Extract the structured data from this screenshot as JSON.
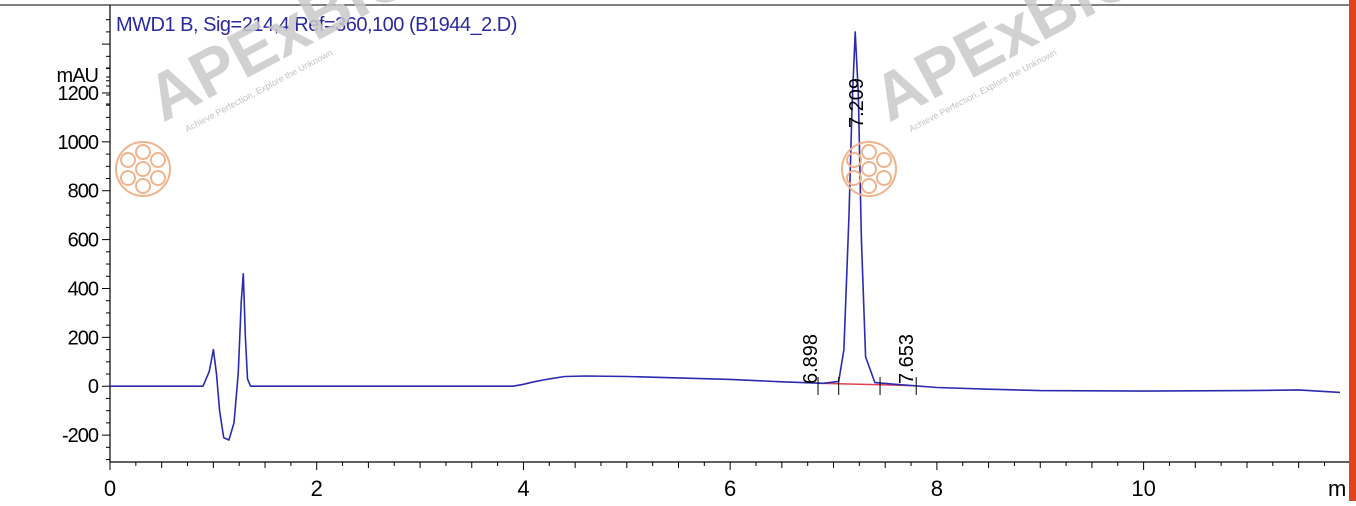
{
  "watermark": {
    "brand": "APExBIO",
    "tagline": "Achieve Perfection, Explore the Unknown",
    "color": "#c8c8c8",
    "logo_color": "#f0b48c"
  },
  "colors": {
    "trace": "#2b2bb0",
    "baseline_segment": "#e04050",
    "right_border": "#e0441a",
    "axis": "#000000"
  },
  "chart_data": {
    "type": "line",
    "title": "MWD1 B, Sig=214,4 Ref=360,100 (B1944_2.D)",
    "ylabel": "mAU",
    "xlabel_partial": "m",
    "xlim": [
      0,
      11.9
    ],
    "ylim": [
      -310,
      1560
    ],
    "xticks": [
      0,
      2,
      4,
      6,
      8,
      10
    ],
    "yticks": [
      -200,
      0,
      200,
      400,
      600,
      800,
      1000,
      1200
    ],
    "peaks": [
      {
        "label": "6.898",
        "x": 6.898
      },
      {
        "label": "7.209",
        "x": 7.209
      },
      {
        "label": "7.653",
        "x": 7.653
      }
    ],
    "series": [
      {
        "x": [
          0,
          0.9,
          0.96,
          1.0,
          1.03,
          1.06,
          1.1,
          1.15,
          1.2,
          1.24,
          1.27,
          1.29,
          1.31,
          1.33,
          1.36,
          1.45,
          1.6,
          2.0,
          3.0,
          3.9,
          4.0,
          4.1,
          4.25,
          4.4,
          4.6,
          5.0,
          6.0,
          6.5,
          6.9,
          7.05,
          7.1,
          7.15,
          7.18,
          7.21,
          7.24,
          7.27,
          7.31,
          7.4,
          7.6,
          8.0,
          8.5,
          9.0,
          10.0,
          11.0,
          11.5,
          11.9
        ],
        "y": [
          0,
          0,
          60,
          150,
          50,
          -100,
          -210,
          -220,
          -150,
          50,
          350,
          460,
          200,
          30,
          0,
          0,
          0,
          0,
          0,
          0,
          8,
          18,
          30,
          40,
          42,
          40,
          28,
          18,
          12,
          20,
          150,
          700,
          1150,
          1450,
          1200,
          600,
          120,
          15,
          8,
          -5,
          -12,
          -18,
          -20,
          -18,
          -15,
          -25
        ]
      }
    ],
    "baseline_segments": [
      {
        "x": [
          6.85,
          7.45
        ],
        "y": [
          12,
          6
        ]
      },
      {
        "x": [
          7.45,
          7.8
        ],
        "y": [
          6,
          2
        ]
      }
    ],
    "grid": false
  }
}
